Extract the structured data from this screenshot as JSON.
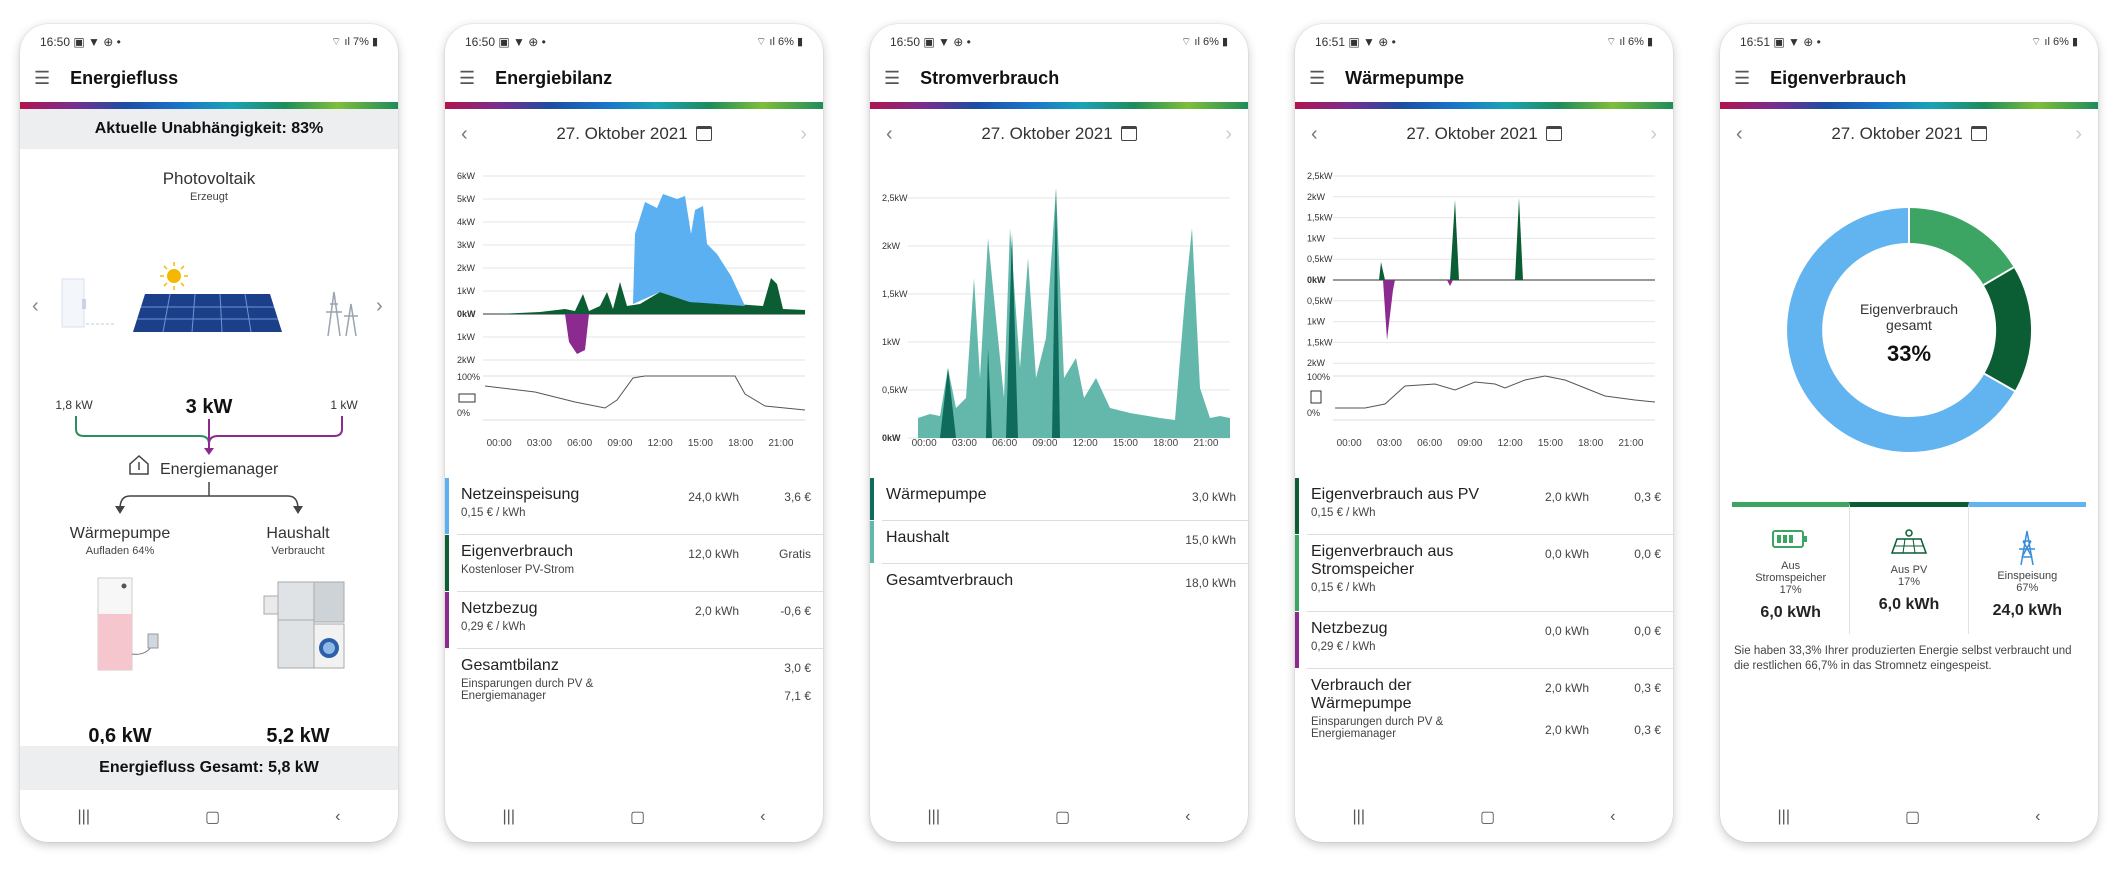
{
  "colors": {
    "pv": "#5ab0f0",
    "self": "#0b5d33",
    "grid": "#8b2a8f",
    "teal": "#63b8ab",
    "darkteal": "#0f6b5c",
    "green": "#3ca564",
    "blue": "#62b4f0"
  },
  "phones": [
    {
      "time": "16:50",
      "status_icons": "▣ ▼ ⊕ •",
      "right": "7%",
      "title": "Energiefluss"
    },
    {
      "time": "16:50",
      "status_icons": "▣ ▼ ⊕ •",
      "right": "6%",
      "title": "Energiebilanz"
    },
    {
      "time": "16:50",
      "status_icons": "▣ ▼ ⊕ •",
      "right": "6%",
      "title": "Stromverbrauch"
    },
    {
      "time": "16:51",
      "status_icons": "▣ ▼ ⊕ •",
      "right": "6%",
      "title": "Wärmepumpe"
    },
    {
      "time": "16:51",
      "status_icons": "▣ ▼ ⊕ •",
      "right": "6%",
      "title": "Eigenverbrauch"
    }
  ],
  "date": "27. Oktober 2021",
  "flow": {
    "independence": "Aktuelle Unabhängigkeit: 83%",
    "pv_label": "Photovoltaik",
    "pv_sub": "Erzeugt",
    "left_kw": "1,8 kW",
    "center_kw": "3 kW",
    "right_kw": "1 kW",
    "manager": "Energiemanager",
    "hp_label": "Wärmepumpe",
    "hp_sub": "Aufladen 64%",
    "house_label": "Haushalt",
    "house_sub": "Verbraucht",
    "hp_kw": "0,6 kW",
    "house_kw": "5,2 kW",
    "total": "Energiefluss Gesamt: 5,8 kW"
  },
  "bilanz": {
    "y_ticks": [
      "6kW",
      "5kW",
      "4kW",
      "3kW",
      "2kW",
      "1kW",
      "0kW",
      "1kW",
      "2kW"
    ],
    "x_ticks": [
      "00:00",
      "03:00",
      "06:00",
      "09:00",
      "12:00",
      "15:00",
      "18:00",
      "21:00"
    ],
    "soc_ticks": [
      "100%",
      "0%"
    ],
    "rows": [
      {
        "name": "Netzeinspeisung",
        "sub": "0,15 € / kWh",
        "kwh": "24,0 kWh",
        "eur": "3,6 €"
      },
      {
        "name": "Eigenverbrauch",
        "sub": "Kostenloser PV-Strom",
        "kwh": "12,0 kWh",
        "eur": "Gratis"
      },
      {
        "name": "Netzbezug",
        "sub": "0,29 € / kWh",
        "kwh": "2,0 kWh",
        "eur": "-0,6 €"
      }
    ],
    "total_name": "Gesamtbilanz",
    "total_val": "3,0 €",
    "save_sub": "Einsparungen durch PV & Energiemanager",
    "save_val": "7,1 €"
  },
  "strom": {
    "y_ticks": [
      "2,5kW",
      "2kW",
      "1,5kW",
      "1kW",
      "0,5kW",
      "0kW"
    ],
    "x_ticks": [
      "00:00",
      "03:00",
      "06:00",
      "09:00",
      "12:00",
      "15:00",
      "18:00",
      "21:00"
    ],
    "rows": [
      {
        "name": "Wärmepumpe",
        "val": "3,0 kWh"
      },
      {
        "name": "Haushalt",
        "val": "15,0 kWh"
      },
      {
        "name": "Gesamtverbrauch",
        "val": "18,0 kWh"
      }
    ]
  },
  "waerme": {
    "y_ticks": [
      "2,5kW",
      "2kW",
      "1,5kW",
      "1kW",
      "0,5kW",
      "0kW",
      "0,5kW",
      "1kW",
      "1,5kW",
      "2kW"
    ],
    "x_ticks": [
      "00:00",
      "03:00",
      "06:00",
      "09:00",
      "12:00",
      "15:00",
      "18:00",
      "21:00"
    ],
    "soc_ticks": [
      "100%",
      "0%"
    ],
    "rows": [
      {
        "name": "Eigenverbrauch aus PV",
        "sub": "0,15 € / kWh",
        "kwh": "2,0 kWh",
        "eur": "0,3 €"
      },
      {
        "name": "Eigenverbrauch aus",
        "name2": "Stromspeicher",
        "sub": "0,15 € / kWh",
        "kwh": "0,0 kWh",
        "eur": "0,0 €"
      },
      {
        "name": "Netzbezug",
        "sub": "0,29 € / kWh",
        "kwh": "0,0 kWh",
        "eur": "0,0 €"
      }
    ],
    "total_name": "Verbrauch der",
    "total_name2": "Wärmepumpe",
    "total_kwh": "2,0 kWh",
    "total_eur": "0,3 €",
    "save_sub": "Einsparungen durch PV & Energiemanager",
    "save_kwh": "2,0 kWh",
    "save_eur": "0,3 €"
  },
  "eigen": {
    "center_l1": "Eigenverbrauch",
    "center_l2": "gesamt",
    "center_pct": "33%",
    "cols": [
      {
        "label": "Aus Stromspeicher",
        "pct": "17%",
        "kwh": "6,0 kWh"
      },
      {
        "label": "Aus PV",
        "pct": "17%",
        "kwh": "6,0 kWh"
      },
      {
        "label": "Einspeisung",
        "pct": "67%",
        "kwh": "24,0 kWh"
      }
    ],
    "note": "Sie haben 33,3% Ihrer produzierten Energie selbst verbraucht und die restlichen 66,7% in das Stromnetz eingespeist."
  },
  "nav": {
    "recents": "|||",
    "home": "▢",
    "back": "‹"
  },
  "arrows": {
    "prev": "‹",
    "next": "›"
  }
}
